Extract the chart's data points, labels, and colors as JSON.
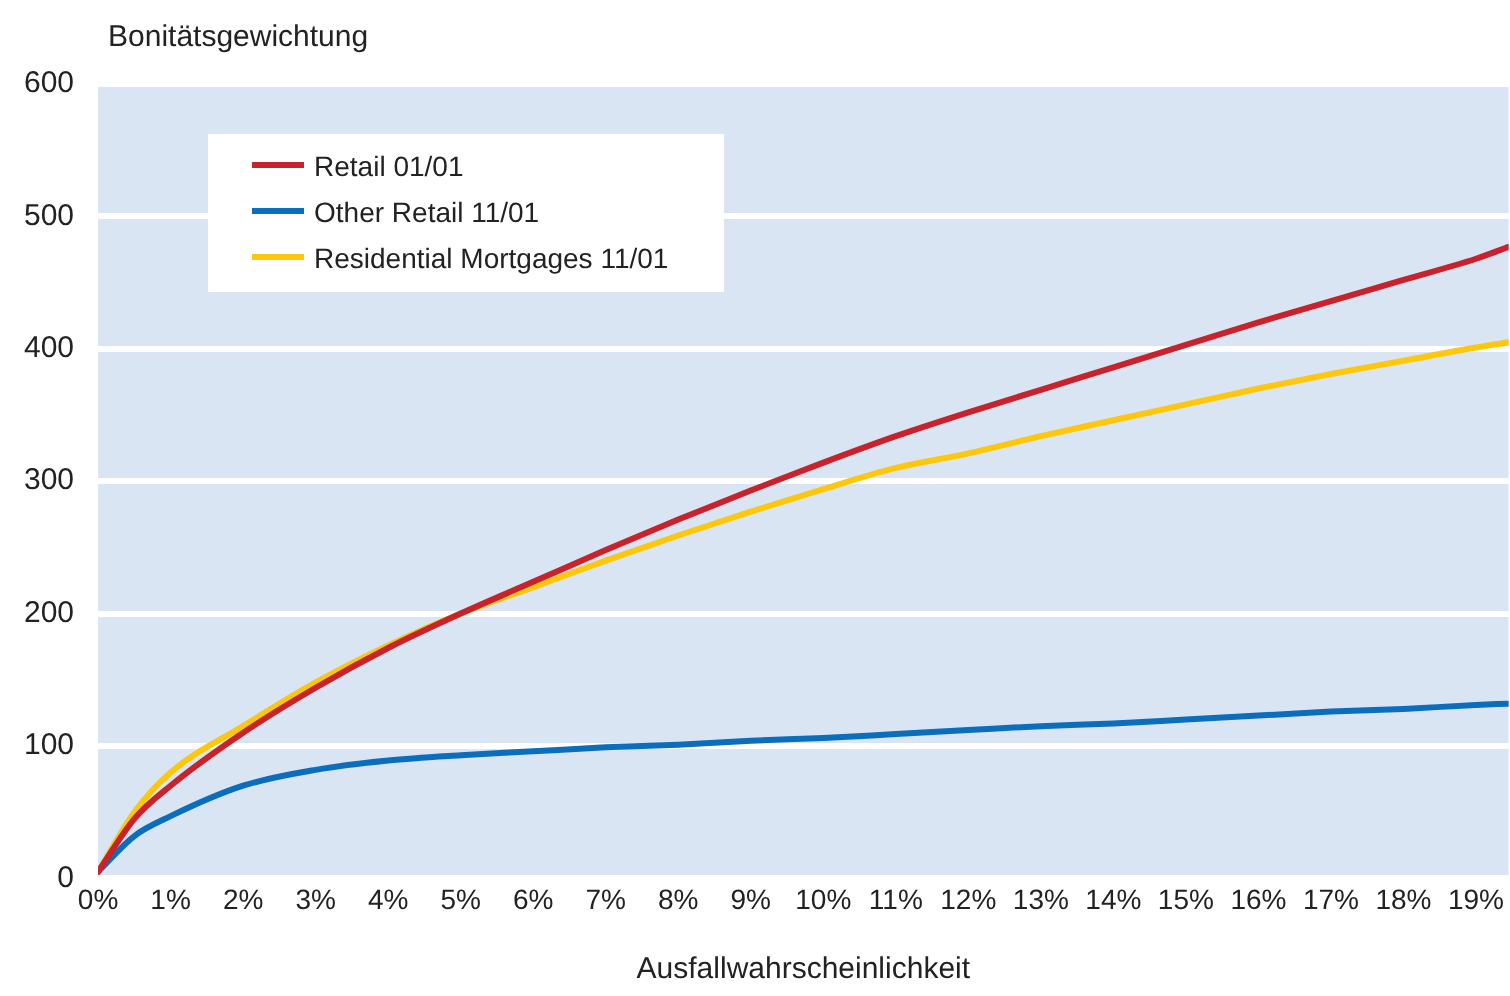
{
  "chart_data": {
    "type": "line",
    "ylabel": "Bonitätsgewichtung",
    "xlabel": "Ausfallwahrscheinlichkeit",
    "x": [
      0,
      0.5,
      1,
      2,
      3,
      4,
      5,
      6,
      7,
      8,
      9,
      10,
      11,
      12,
      13,
      14,
      15,
      16,
      17,
      18,
      19,
      19.45
    ],
    "series": [
      {
        "name": "Retail 01/01",
        "color": "#c8232c",
        "values": [
          5,
          45,
          70,
          110,
          144,
          174,
          200,
          224,
          248,
          271,
          293,
          314,
          334,
          352,
          369,
          386,
          403,
          420,
          436,
          452,
          468,
          477
        ]
      },
      {
        "name": "Other Retail 11/01",
        "color": "#0a6ebd",
        "values": [
          5,
          32,
          47,
          70,
          82,
          89,
          93,
          96,
          99,
          101,
          104,
          106,
          109,
          112,
          115,
          117,
          120,
          123,
          126,
          128,
          131,
          132
        ]
      },
      {
        "name": "Residential Mortgages  11/01",
        "color": "#fdc70c",
        "values": [
          5,
          50,
          80,
          115,
          148,
          176,
          200,
          220,
          240,
          259,
          277,
          294,
          310,
          321,
          334,
          346,
          358,
          370,
          381,
          391,
          401,
          405
        ]
      }
    ],
    "xlim": [
      0,
      19.45
    ],
    "xticks": [
      {
        "value": 0,
        "label": "0%"
      },
      {
        "value": 1,
        "label": "1%"
      },
      {
        "value": 2,
        "label": "2%"
      },
      {
        "value": 3,
        "label": "3%"
      },
      {
        "value": 4,
        "label": "4%"
      },
      {
        "value": 5,
        "label": "5%"
      },
      {
        "value": 6,
        "label": "6%"
      },
      {
        "value": 7,
        "label": "7%"
      },
      {
        "value": 8,
        "label": "8%"
      },
      {
        "value": 9,
        "label": "9%"
      },
      {
        "value": 10,
        "label": "10%"
      },
      {
        "value": 11,
        "label": "11%"
      },
      {
        "value": 12,
        "label": "12%"
      },
      {
        "value": 13,
        "label": "13%"
      },
      {
        "value": 14,
        "label": "14%"
      },
      {
        "value": 15,
        "label": "15%"
      },
      {
        "value": 16,
        "label": "16%"
      },
      {
        "value": 17,
        "label": "17%"
      },
      {
        "value": 18,
        "label": "18%"
      },
      {
        "value": 19,
        "label": "19%"
      }
    ],
    "ylim": [
      0,
      600
    ],
    "yticks": [
      0,
      100,
      200,
      300,
      400,
      500,
      600
    ],
    "grid": "y",
    "legend": "top left",
    "marker": "none",
    "line_style": "solid"
  }
}
